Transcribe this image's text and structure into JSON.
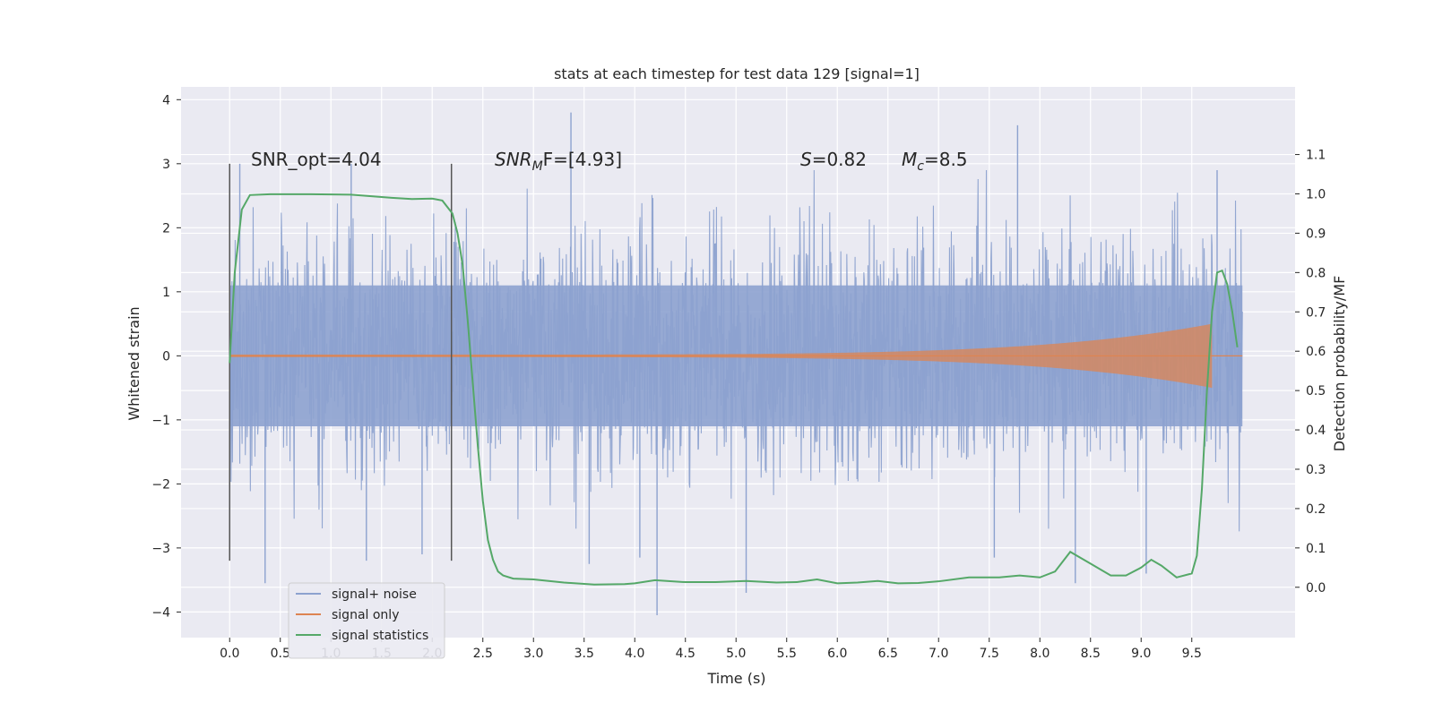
{
  "chart_data": {
    "type": "line",
    "title": "stats at each timestep for test data 129 [signal=1]",
    "xlabel": "Time (s)",
    "ylabel": "Whitened strain",
    "y2label": "Detection probability/MF",
    "xlim": [
      -0.48,
      10.52
    ],
    "ylim": [
      -4.4,
      4.2
    ],
    "y2lim": [
      -0.128,
      1.272
    ],
    "x_ticks": [
      "0.0",
      "0.5",
      "1.0",
      "1.5",
      "2.0",
      "2.5",
      "3.0",
      "3.5",
      "4.0",
      "4.5",
      "5.0",
      "5.5",
      "6.0",
      "6.5",
      "7.0",
      "7.5",
      "8.0",
      "8.5",
      "9.0",
      "9.5"
    ],
    "y_ticks": [
      "4",
      "3",
      "2",
      "1",
      "0",
      "−1",
      "−2",
      "−3",
      "−4"
    ],
    "y2_ticks": [
      "1.1",
      "1.0",
      "0.9",
      "0.8",
      "0.7",
      "0.6",
      "0.5",
      "0.4",
      "0.3",
      "0.2",
      "0.1",
      "0.0"
    ],
    "grid": true,
    "legend_position": "lower-left",
    "annotations": {
      "snr_opt": "SNR_opt=4.04",
      "snr_mf_label": "SNR",
      "snr_mf_sub": "M",
      "snr_mf_rest": "F=[4.93]",
      "s_sym": "S",
      "s_val": "=0.82",
      "mc_sym": "M",
      "mc_sub": "c",
      "mc_val": "=8.5"
    },
    "markers_x": [
      0.0,
      2.19
    ],
    "series": [
      {
        "name": "signal+ noise",
        "color": "#8da2cf",
        "x_range": [
          0.0,
          10.0
        ],
        "envelope_typical": 1.8,
        "peaks": [
          {
            "x": 0.1,
            "y": 3.0
          },
          {
            "x": 0.35,
            "y": -3.55
          },
          {
            "x": 1.2,
            "y": 3.0
          },
          {
            "x": 1.35,
            "y": -3.2
          },
          {
            "x": 1.9,
            "y": -3.1
          },
          {
            "x": 3.37,
            "y": 3.8
          },
          {
            "x": 3.55,
            "y": -3.25
          },
          {
            "x": 4.05,
            "y": -3.15
          },
          {
            "x": 4.22,
            "y": -4.05
          },
          {
            "x": 5.1,
            "y": -3.7
          },
          {
            "x": 7.55,
            "y": -3.15
          },
          {
            "x": 7.78,
            "y": 3.6
          },
          {
            "x": 8.35,
            "y": -3.55
          },
          {
            "x": 9.05,
            "y": -3.4
          },
          {
            "x": 9.75,
            "y": 2.9
          }
        ]
      },
      {
        "name": "signal only",
        "color": "#dd8452",
        "x_range": [
          0.0,
          9.7
        ],
        "amplitude_start": 0.02,
        "amplitude_end": 0.5
      },
      {
        "name": "signal statistics",
        "color": "#55a868",
        "axis": "right",
        "x": [
          0.0,
          0.05,
          0.12,
          0.2,
          0.4,
          0.8,
          1.2,
          1.6,
          1.8,
          2.0,
          2.1,
          2.2,
          2.25,
          2.3,
          2.35,
          2.4,
          2.45,
          2.5,
          2.55,
          2.6,
          2.65,
          2.7,
          2.8,
          3.0,
          3.3,
          3.6,
          3.9,
          4.0,
          4.2,
          4.5,
          4.8,
          5.1,
          5.4,
          5.6,
          5.8,
          6.0,
          6.2,
          6.4,
          6.6,
          6.8,
          7.0,
          7.3,
          7.6,
          7.8,
          8.0,
          8.15,
          8.3,
          8.5,
          8.7,
          8.85,
          9.0,
          9.1,
          9.2,
          9.35,
          9.5,
          9.55,
          9.6,
          9.65,
          9.7,
          9.75,
          9.8,
          9.85,
          9.9,
          9.95
        ],
        "values": [
          0.57,
          0.8,
          0.96,
          0.997,
          0.999,
          0.999,
          0.998,
          0.99,
          0.987,
          0.988,
          0.983,
          0.95,
          0.9,
          0.82,
          0.68,
          0.52,
          0.36,
          0.22,
          0.12,
          0.07,
          0.04,
          0.03,
          0.022,
          0.02,
          0.012,
          0.007,
          0.008,
          0.01,
          0.018,
          0.013,
          0.013,
          0.016,
          0.012,
          0.013,
          0.02,
          0.01,
          0.012,
          0.016,
          0.01,
          0.011,
          0.015,
          0.025,
          0.025,
          0.03,
          0.025,
          0.04,
          0.09,
          0.06,
          0.03,
          0.03,
          0.05,
          0.07,
          0.055,
          0.025,
          0.035,
          0.08,
          0.25,
          0.5,
          0.7,
          0.8,
          0.805,
          0.77,
          0.7,
          0.61
        ]
      }
    ]
  }
}
